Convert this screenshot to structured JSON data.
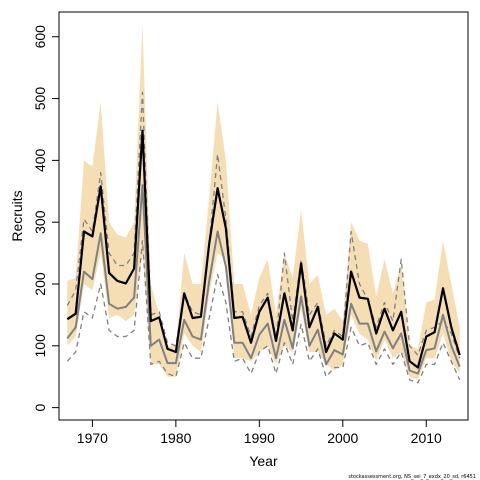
{
  "chart_data": {
    "type": "line",
    "title": "",
    "xlabel": "Year",
    "ylabel": "Recruits",
    "xlim": [
      1966,
      2015
    ],
    "ylim": [
      -20,
      640
    ],
    "x_ticks": [
      1970,
      1980,
      1990,
      2000,
      2010
    ],
    "y_ticks": [
      0,
      100,
      200,
      300,
      400,
      500,
      600
    ],
    "grid": false,
    "legend": "none",
    "footnote": "stockassessment.org, NS_sei_7_exdx_20_sd, r6451",
    "colors": {
      "confidence_band": "#f5deb3",
      "estimate": "#000000",
      "comparison_run": "#808080",
      "comparison_bounds": "#808080"
    },
    "x": [
      1967,
      1968,
      1969,
      1970,
      1971,
      1972,
      1973,
      1974,
      1975,
      1976,
      1977,
      1978,
      1979,
      1980,
      1981,
      1982,
      1983,
      1984,
      1985,
      1986,
      1987,
      1988,
      1989,
      1990,
      1991,
      1992,
      1993,
      1994,
      1995,
      1996,
      1997,
      1998,
      1999,
      2000,
      2001,
      2002,
      2003,
      2004,
      2005,
      2006,
      2007,
      2008,
      2009,
      2010,
      2011,
      2012,
      2013,
      2014
    ],
    "series": [
      {
        "role": "band",
        "upper": [
          205,
          210,
          400,
          390,
          495,
          300,
          280,
          275,
          300,
          620,
          200,
          150,
          100,
          100,
          250,
          200,
          200,
          340,
          495,
          400,
          200,
          200,
          150,
          210,
          240,
          150,
          250,
          210,
          320,
          200,
          215,
          150,
          160,
          140,
          300,
          270,
          265,
          180,
          240,
          185,
          230,
          100,
          95,
          170,
          175,
          270,
          200,
          130
        ],
        "lower": [
          100,
          115,
          200,
          190,
          250,
          145,
          150,
          140,
          150,
          250,
          70,
          70,
          50,
          50,
          120,
          100,
          90,
          185,
          250,
          240,
          80,
          80,
          75,
          90,
          100,
          70,
          100,
          90,
          160,
          90,
          90,
          70,
          60,
          70,
          150,
          120,
          110,
          75,
          110,
          80,
          90,
          50,
          45,
          80,
          80,
          120,
          75,
          55
        ]
      },
      {
        "role": "estimate",
        "values": [
          143,
          152,
          285,
          277,
          358,
          218,
          205,
          201,
          225,
          448,
          140,
          146,
          95,
          90,
          185,
          145,
          147,
          265,
          355,
          290,
          145,
          147,
          105,
          155,
          178,
          108,
          185,
          125,
          233,
          130,
          163,
          90,
          120,
          110,
          220,
          178,
          176,
          120,
          160,
          125,
          155,
          75,
          65,
          115,
          122,
          193,
          130,
          85
        ]
      },
      {
        "role": "comparison",
        "values": [
          112,
          130,
          220,
          208,
          282,
          168,
          160,
          163,
          178,
          360,
          100,
          110,
          72,
          72,
          142,
          115,
          110,
          205,
          285,
          228,
          105,
          105,
          80,
          118,
          136,
          80,
          142,
          96,
          180,
          100,
          126,
          70,
          93,
          86,
          168,
          136,
          136,
          91,
          123,
          96,
          120,
          60,
          55,
          93,
          96,
          150,
          100,
          66
        ]
      },
      {
        "role": "comparison-upper",
        "values": [
          165,
          190,
          305,
          285,
          380,
          250,
          230,
          230,
          250,
          510,
          150,
          155,
          105,
          100,
          185,
          155,
          150,
          265,
          410,
          305,
          155,
          155,
          115,
          165,
          185,
          110,
          250,
          140,
          240,
          150,
          170,
          100,
          125,
          115,
          285,
          200,
          175,
          130,
          170,
          140,
          240,
          100,
          85,
          125,
          130,
          140,
          120,
          80
        ]
      },
      {
        "role": "comparison-lower",
        "values": [
          75,
          90,
          155,
          145,
          200,
          125,
          115,
          115,
          125,
          270,
          70,
          75,
          55,
          50,
          105,
          80,
          80,
          145,
          215,
          170,
          75,
          80,
          55,
          90,
          100,
          55,
          105,
          70,
          135,
          75,
          95,
          50,
          65,
          65,
          130,
          100,
          105,
          70,
          95,
          70,
          90,
          45,
          40,
          70,
          70,
          105,
          75,
          45
        ]
      }
    ]
  }
}
